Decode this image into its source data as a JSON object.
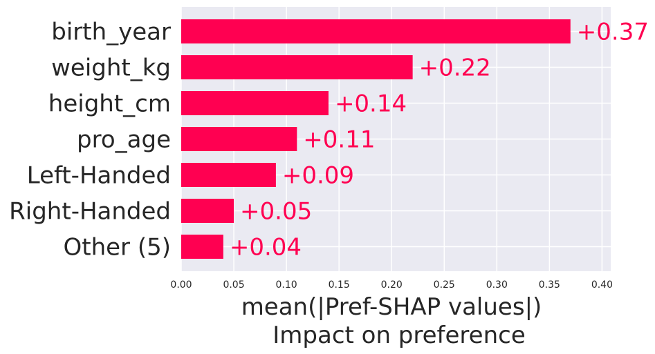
{
  "chart_data": {
    "type": "bar",
    "orientation": "horizontal",
    "categories": [
      "birth_year",
      "weight_kg",
      "height_cm",
      "pro_age",
      "Left-Handed",
      "Right-Handed",
      "Other (5)"
    ],
    "values": [
      0.37,
      0.22,
      0.14,
      0.11,
      0.09,
      0.05,
      0.04
    ],
    "value_labels": [
      "+0.37",
      "+0.22",
      "+0.14",
      "+0.11",
      "+0.09",
      "+0.05",
      "+0.04"
    ],
    "xticks": [
      0,
      0.05,
      0.1,
      0.15,
      0.2,
      0.25,
      0.3,
      0.35,
      0.4
    ],
    "xtick_labels": [
      "0.00",
      "0.05",
      "0.10",
      "0.15",
      "0.20",
      "0.25",
      "0.30",
      "0.35",
      "0.40"
    ],
    "xlabel_line1": "mean(|Pref-SHAP values|)",
    "xlabel_line2": "Impact on preference",
    "xlim": [
      0,
      0.405
    ],
    "grid": true,
    "colors": {
      "bar": "#ff0051",
      "value_text": "#ff0051",
      "plot_background": "#eaeaf2",
      "grid": "#ffffff",
      "text": "#262626"
    }
  }
}
